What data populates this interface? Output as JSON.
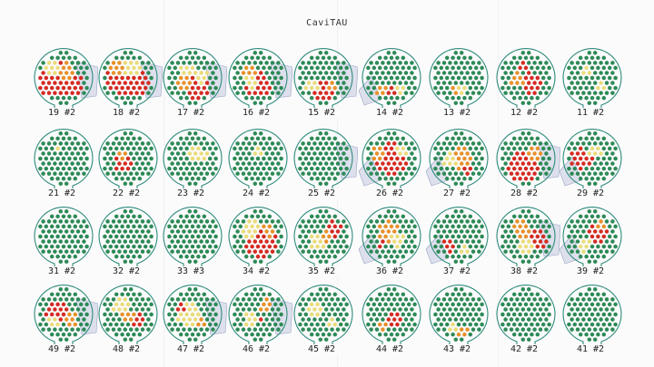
{
  "title": "CaviTAU",
  "colors": {
    "outline": "#2e8b7a",
    "ok": "#2d8a57",
    "low": "#eadc7a",
    "mid": "#e8912a",
    "high": "#d52b22",
    "paper": "#fbfbfc"
  },
  "rows": [
    {
      "panels": [
        {
          "label": "19 #2",
          "cutout": "right",
          "hot": [
            [
              -10,
              2,
              20,
              "high"
            ],
            [
              8,
              6,
              14,
              "high"
            ],
            [
              2,
              -8,
              10,
              "mid"
            ],
            [
              -14,
              -10,
              8,
              "low"
            ]
          ]
        },
        {
          "label": "18 #2",
          "cutout": "right",
          "hot": [
            [
              -6,
              0,
              18,
              "high"
            ],
            [
              10,
              6,
              14,
              "high"
            ],
            [
              -14,
              -10,
              8,
              "mid"
            ],
            [
              4,
              -12,
              10,
              "low"
            ]
          ]
        },
        {
          "label": "17 #2",
          "cutout": "right",
          "hot": [
            [
              4,
              10,
              14,
              "high"
            ],
            [
              -10,
              6,
              10,
              "mid"
            ],
            [
              -6,
              -8,
              8,
              "low"
            ],
            [
              10,
              -2,
              8,
              "low"
            ]
          ]
        },
        {
          "label": "16 #2",
          "cutout": "right",
          "hot": [
            [
              0,
              8,
              14,
              "high"
            ],
            [
              -10,
              -6,
              10,
              "mid"
            ],
            [
              -8,
              4,
              8,
              "low"
            ]
          ]
        },
        {
          "label": "15 #2",
          "cutout": "right",
          "hot": [
            [
              0,
              14,
              12,
              "high"
            ],
            [
              -12,
              8,
              8,
              "low"
            ],
            [
              10,
              10,
              6,
              "mid"
            ]
          ]
        },
        {
          "label": "14 #2",
          "cutout": "left",
          "hot": [
            [
              -10,
              14,
              7,
              "mid"
            ],
            [
              8,
              14,
              6,
              "low"
            ],
            [
              0,
              16,
              5,
              "high"
            ]
          ]
        },
        {
          "label": "13 #2",
          "cutout": "none",
          "hot": [
            [
              4,
              12,
              6,
              "low"
            ],
            [
              -6,
              14,
              4,
              "mid"
            ]
          ]
        },
        {
          "label": "12 #2",
          "cutout": "none",
          "hot": [
            [
              6,
              6,
              12,
              "high"
            ],
            [
              -10,
              2,
              8,
              "mid"
            ],
            [
              -4,
              -12,
              6,
              "high"
            ]
          ]
        },
        {
          "label": "11 #2",
          "cutout": "none",
          "hot": [
            [
              -6,
              -10,
              6,
              "low"
            ],
            [
              10,
              8,
              6,
              "low"
            ]
          ]
        }
      ]
    },
    {
      "panels": [
        {
          "label": "21 #2",
          "cutout": "none",
          "hot": [
            [
              -6,
              -12,
              5,
              "low"
            ]
          ]
        },
        {
          "label": "22 #2",
          "cutout": "none",
          "hot": [
            [
              -6,
              6,
              10,
              "high"
            ],
            [
              -8,
              -4,
              6,
              "mid"
            ]
          ]
        },
        {
          "label": "23 #2",
          "cutout": "none",
          "hot": [
            [
              2,
              -6,
              8,
              "low"
            ],
            [
              12,
              -2,
              6,
              "low"
            ]
          ]
        },
        {
          "label": "24 #2",
          "cutout": "none",
          "hot": [
            [
              2,
              -6,
              6,
              "low"
            ]
          ]
        },
        {
          "label": "25 #2",
          "cutout": "right",
          "hot": []
        },
        {
          "label": "26 #2",
          "cutout": "left",
          "hot": [
            [
              0,
              0,
              18,
              "high"
            ],
            [
              -14,
              -6,
              8,
              "mid"
            ],
            [
              12,
              -10,
              6,
              "low"
            ]
          ]
        },
        {
          "label": "27 #2",
          "cutout": "left",
          "hot": [
            [
              4,
              0,
              12,
              "mid"
            ],
            [
              -10,
              2,
              8,
              "low"
            ],
            [
              8,
              12,
              6,
              "high"
            ]
          ]
        },
        {
          "label": "28 #2",
          "cutout": "right",
          "hot": [
            [
              -2,
              8,
              18,
              "high"
            ],
            [
              10,
              -6,
              8,
              "mid"
            ]
          ]
        },
        {
          "label": "29 #2",
          "cutout": "left",
          "hot": [
            [
              -12,
              0,
              12,
              "high"
            ],
            [
              4,
              -8,
              8,
              "low"
            ]
          ]
        }
      ]
    },
    {
      "panels": [
        {
          "label": "31 #2",
          "cutout": "none",
          "hot": []
        },
        {
          "label": "32 #2",
          "cutout": "none",
          "hot": []
        },
        {
          "label": "33 #3",
          "cutout": "none",
          "hot": []
        },
        {
          "label": "34 #2",
          "cutout": "none",
          "hot": [
            [
              4,
              6,
              18,
              "high"
            ],
            [
              -8,
              -8,
              10,
              "low"
            ],
            [
              12,
              -6,
              8,
              "mid"
            ]
          ]
        },
        {
          "label": "35 #2",
          "cutout": "none",
          "hot": [
            [
              10,
              -8,
              10,
              "high"
            ],
            [
              -6,
              6,
              10,
              "low"
            ],
            [
              4,
              0,
              6,
              "mid"
            ]
          ]
        },
        {
          "label": "36 #2",
          "cutout": "left",
          "hot": [
            [
              -4,
              -6,
              12,
              "mid"
            ],
            [
              6,
              4,
              8,
              "low"
            ],
            [
              -10,
              6,
              6,
              "high"
            ]
          ]
        },
        {
          "label": "37 #2",
          "cutout": "left",
          "hot": [
            [
              -10,
              10,
              8,
              "high"
            ],
            [
              6,
              14,
              6,
              "low"
            ]
          ]
        },
        {
          "label": "38 #2",
          "cutout": "right",
          "hot": [
            [
              12,
              4,
              12,
              "high"
            ],
            [
              -6,
              -8,
              10,
              "mid"
            ],
            [
              0,
              10,
              8,
              "low"
            ]
          ]
        },
        {
          "label": "39 #2",
          "cutout": "left",
          "hot": [
            [
              6,
              -2,
              12,
              "high"
            ],
            [
              -8,
              10,
              8,
              "low"
            ],
            [
              12,
              -12,
              6,
              "mid"
            ]
          ]
        }
      ]
    },
    {
      "panels": [
        {
          "label": "49 #2",
          "cutout": "right",
          "hot": [
            [
              -6,
              -2,
              14,
              "high"
            ],
            [
              8,
              6,
              8,
              "mid"
            ],
            [
              -12,
              10,
              6,
              "low"
            ]
          ]
        },
        {
          "label": "48 #2",
          "cutout": "none",
          "hot": [
            [
              -8,
              -10,
              10,
              "low"
            ],
            [
              10,
              6,
              8,
              "high"
            ],
            [
              0,
              2,
              8,
              "mid"
            ]
          ]
        },
        {
          "label": "47 #2",
          "cutout": "right",
          "hot": [
            [
              -4,
              0,
              14,
              "low"
            ],
            [
              8,
              10,
              6,
              "mid"
            ],
            [
              -12,
              -8,
              6,
              "high"
            ]
          ]
        },
        {
          "label": "46 #2",
          "cutout": "right",
          "hot": [
            [
              8,
              -10,
              8,
              "mid"
            ],
            [
              -8,
              6,
              8,
              "low"
            ],
            [
              4,
              4,
              4,
              "high"
            ]
          ]
        },
        {
          "label": "45 #2",
          "cutout": "none",
          "hot": [
            [
              -10,
              -6,
              8,
              "low"
            ],
            [
              10,
              8,
              6,
              "low"
            ]
          ]
        },
        {
          "label": "44 #2",
          "cutout": "none",
          "hot": [
            [
              2,
              6,
              10,
              "high"
            ],
            [
              -8,
              12,
              6,
              "mid"
            ]
          ]
        },
        {
          "label": "43 #2",
          "cutout": "none",
          "hot": [
            [
              4,
              18,
              6,
              "mid"
            ],
            [
              -6,
              16,
              5,
              "low"
            ]
          ]
        },
        {
          "label": "42 #2",
          "cutout": "none",
          "hot": []
        },
        {
          "label": "41 #2",
          "cutout": "none",
          "hot": []
        }
      ]
    }
  ]
}
